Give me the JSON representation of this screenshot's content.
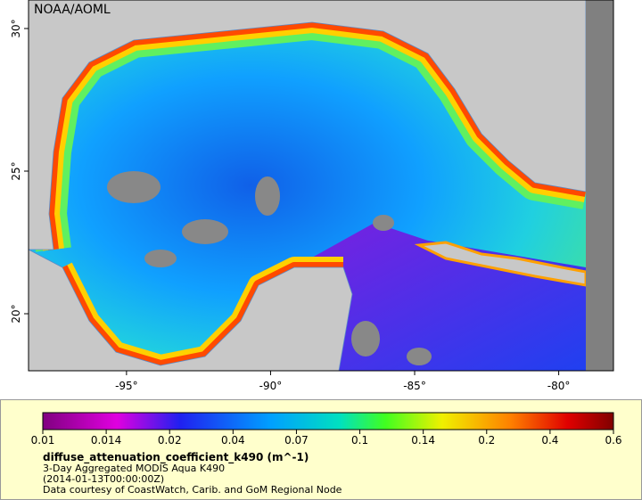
{
  "header": {
    "credit": "NOAA/AOML"
  },
  "map": {
    "lonlim": [
      -98.4,
      -78.1
    ],
    "latlim": [
      18,
      31
    ],
    "lonticks": [
      {
        "value": -95,
        "label": "-95°"
      },
      {
        "value": -90,
        "label": "-90°"
      },
      {
        "value": -85,
        "label": "-85°"
      },
      {
        "value": -80,
        "label": "-80°"
      }
    ],
    "latticks": [
      {
        "value": 20,
        "label": "20°"
      },
      {
        "value": 25,
        "label": "25°"
      },
      {
        "value": 30,
        "label": "30°"
      }
    ]
  },
  "legend": {
    "colorbar_ticks": [
      0.01,
      0.014,
      0.02,
      0.04,
      0.07,
      0.1,
      0.14,
      0.2,
      0.4,
      0.6
    ],
    "variable": "diffuse_attenuation_coefficient_k490 (m^-1)",
    "description": "3-Day Aggregated MODIS Aqua K490",
    "time": "(2014-01-13T00:00:00Z)",
    "credit": "Data courtesy of CoastWatch, Carib. and GoM Regional Node"
  }
}
